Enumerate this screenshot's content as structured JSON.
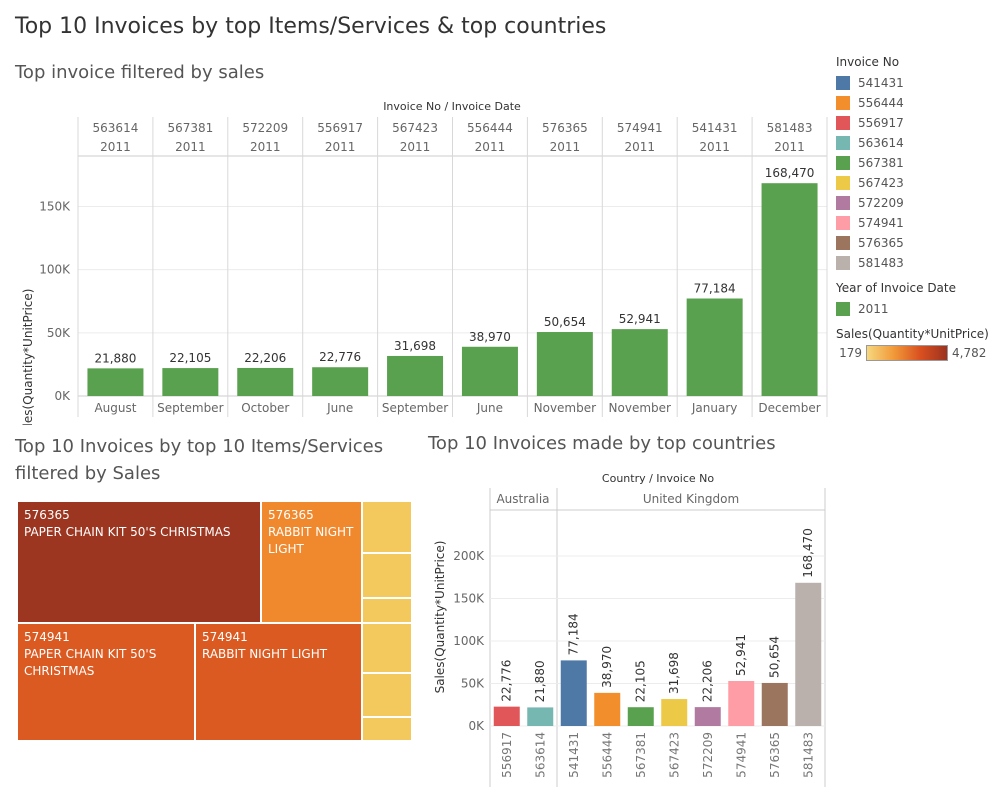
{
  "dashboard": {
    "title": "Top 10 Invoices by top Items/Services & top countries"
  },
  "top_chart": {
    "title": "Top invoice filtered by sales",
    "header_label": "Invoice No  /  Invoice Date",
    "ylabel": "Sales(Quantity*UnitPrice)",
    "yticks": [
      "0K",
      "50K",
      "100K",
      "150K"
    ],
    "bar_color": "#59a14f"
  },
  "treemap": {
    "title": "Top 10 Invoices by top 10 Items/Services filtered by Sales",
    "cells": [
      {
        "invoice": "576365",
        "item": "PAPER CHAIN KIT 50'S CHRISTMAS",
        "color": "#9c3621"
      },
      {
        "invoice": "576365",
        "item": "RABBIT NIGHT LIGHT",
        "color": "#f0892e"
      },
      {
        "invoice": "574941",
        "item": "PAPER CHAIN KIT 50'S CHRISTMAS",
        "color": "#db5a22"
      },
      {
        "invoice": "574941",
        "item": "RABBIT NIGHT LIGHT",
        "color": "#db5a22"
      }
    ],
    "small_cell_color": "#f3c95d"
  },
  "country_chart": {
    "title": "Top 10 Invoices made by top countries",
    "header_label": "Country  /  Invoice No",
    "ylabel": "Sales(Quantity*UnitPrice)",
    "yticks": [
      "0K",
      "50K",
      "100K",
      "150K",
      "200K"
    ],
    "countries": [
      "Australia",
      "United Kingdom"
    ]
  },
  "legend": {
    "invoice_title": "Invoice No",
    "invoices": [
      {
        "label": "541431",
        "color": "#4e79a7"
      },
      {
        "label": "556444",
        "color": "#f28e2b"
      },
      {
        "label": "556917",
        "color": "#e15759"
      },
      {
        "label": "563614",
        "color": "#76b7b2"
      },
      {
        "label": "567381",
        "color": "#59a14f"
      },
      {
        "label": "567423",
        "color": "#edc948"
      },
      {
        "label": "572209",
        "color": "#b07aa1"
      },
      {
        "label": "574941",
        "color": "#ff9da7"
      },
      {
        "label": "576365",
        "color": "#9c755f"
      },
      {
        "label": "581483",
        "color": "#bab0ac"
      }
    ],
    "year_title": "Year of Invoice Date",
    "year_label": "2011",
    "year_color": "#59a14f",
    "sales_title": "Sales(Quantity*UnitPrice)",
    "sales_min": "179",
    "sales_max": "4,782"
  },
  "chart_data": [
    {
      "type": "bar",
      "title": "Top invoice filtered by sales",
      "ylabel": "Sales(Quantity*UnitPrice)",
      "ylim": [
        0,
        190000
      ],
      "categories": [
        {
          "invoice": "563614",
          "year": "2011",
          "month": "August"
        },
        {
          "invoice": "567381",
          "year": "2011",
          "month": "September"
        },
        {
          "invoice": "572209",
          "year": "2011",
          "month": "October"
        },
        {
          "invoice": "556917",
          "year": "2011",
          "month": "June"
        },
        {
          "invoice": "567423",
          "year": "2011",
          "month": "September"
        },
        {
          "invoice": "556444",
          "year": "2011",
          "month": "June"
        },
        {
          "invoice": "576365",
          "year": "2011",
          "month": "November"
        },
        {
          "invoice": "574941",
          "year": "2011",
          "month": "November"
        },
        {
          "invoice": "541431",
          "year": "2011",
          "month": "January"
        },
        {
          "invoice": "581483",
          "year": "2011",
          "month": "December"
        }
      ],
      "values": [
        21880,
        22105,
        22206,
        22776,
        31698,
        38970,
        50654,
        52941,
        77184,
        168470
      ],
      "labels": [
        "21,880",
        "22,105",
        "22,206",
        "22,776",
        "31,698",
        "38,970",
        "50,654",
        "52,941",
        "77,184",
        "168,470"
      ]
    },
    {
      "type": "bar",
      "title": "Top 10 Invoices made by top countries",
      "ylabel": "Sales(Quantity*UnitPrice)",
      "ylim": [
        0,
        240000
      ],
      "categories": [
        "556917",
        "563614",
        "541431",
        "556444",
        "567381",
        "567423",
        "572209",
        "574941",
        "576365",
        "581483"
      ],
      "countries": [
        "Australia",
        "Australia",
        "United Kingdom",
        "United Kingdom",
        "United Kingdom",
        "United Kingdom",
        "United Kingdom",
        "United Kingdom",
        "United Kingdom",
        "United Kingdom"
      ],
      "values": [
        22776,
        21880,
        77184,
        38970,
        22105,
        31698,
        22206,
        52941,
        50654,
        168470
      ],
      "labels": [
        "22,776",
        "21,880",
        "77,184",
        "38,970",
        "22,105",
        "31,698",
        "22,206",
        "52,941",
        "50,654",
        "168,470"
      ],
      "colors": [
        "#e15759",
        "#76b7b2",
        "#4e79a7",
        "#f28e2b",
        "#59a14f",
        "#edc948",
        "#b07aa1",
        "#ff9da7",
        "#9c755f",
        "#bab0ac"
      ]
    }
  ]
}
